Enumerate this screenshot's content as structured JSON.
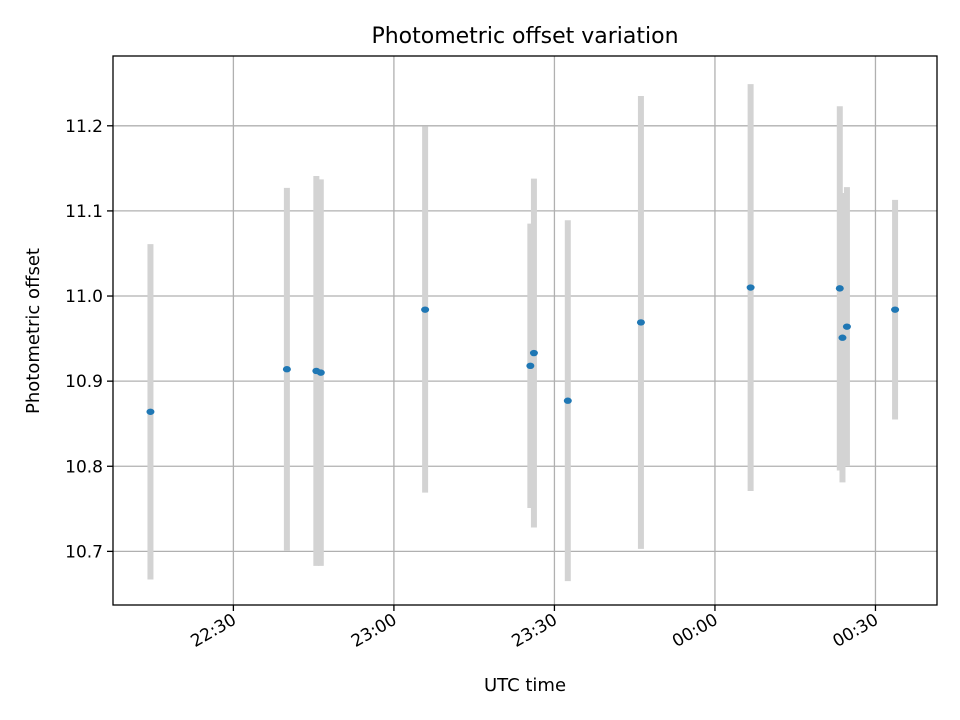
{
  "chart_data": {
    "type": "scatter",
    "title": "Photometric offset variation",
    "xlabel": "UTC time",
    "ylabel": "Photometric offset",
    "x_tick_labels": [
      "22:30",
      "23:00",
      "23:30",
      "00:00",
      "00:30"
    ],
    "x_ticks": [
      "2000-01-01T22:30",
      "2000-01-01T23:00",
      "2000-01-01T23:30",
      "2000-01-02T00:00",
      "2000-01-02T00:30"
    ],
    "y_ticks": [
      10.7,
      10.8,
      10.9,
      11.0,
      11.1,
      11.2
    ],
    "y_tick_labels": [
      "10.7",
      "10.8",
      "10.9",
      "11.0",
      "11.1",
      "11.2"
    ],
    "xlim": [
      "2000-01-01T22:07:30",
      "2000-01-02T00:41:30"
    ],
    "ylim": [
      10.637,
      11.282
    ],
    "grid": true,
    "marker_color": "#1f77b4",
    "errorbar_color": "#d3d3d3",
    "points": [
      {
        "x": "2000-01-01T22:14:30",
        "y": 10.864,
        "yerr": 0.197
      },
      {
        "x": "2000-01-01T22:40:00",
        "y": 10.914,
        "yerr": 0.213
      },
      {
        "x": "2000-01-01T22:45:30",
        "y": 10.912,
        "yerr": 0.229
      },
      {
        "x": "2000-01-01T22:46:20",
        "y": 10.91,
        "yerr": 0.227
      },
      {
        "x": "2000-01-01T23:05:50",
        "y": 10.984,
        "yerr": 0.215
      },
      {
        "x": "2000-01-01T23:25:30",
        "y": 10.918,
        "yerr": 0.167
      },
      {
        "x": "2000-01-01T23:26:10",
        "y": 10.933,
        "yerr": 0.205
      },
      {
        "x": "2000-01-01T23:32:30",
        "y": 10.877,
        "yerr": 0.212
      },
      {
        "x": "2000-01-01T23:46:10",
        "y": 10.969,
        "yerr": 0.266
      },
      {
        "x": "2000-01-02T00:06:40",
        "y": 11.01,
        "yerr": 0.239
      },
      {
        "x": "2000-01-02T00:23:20",
        "y": 11.009,
        "yerr": 0.214
      },
      {
        "x": "2000-01-02T00:23:50",
        "y": 10.951,
        "yerr": 0.17
      },
      {
        "x": "2000-01-02T00:24:40",
        "y": 10.964,
        "yerr": 0.164
      },
      {
        "x": "2000-01-02T00:33:40",
        "y": 10.984,
        "yerr": 0.129
      }
    ]
  }
}
